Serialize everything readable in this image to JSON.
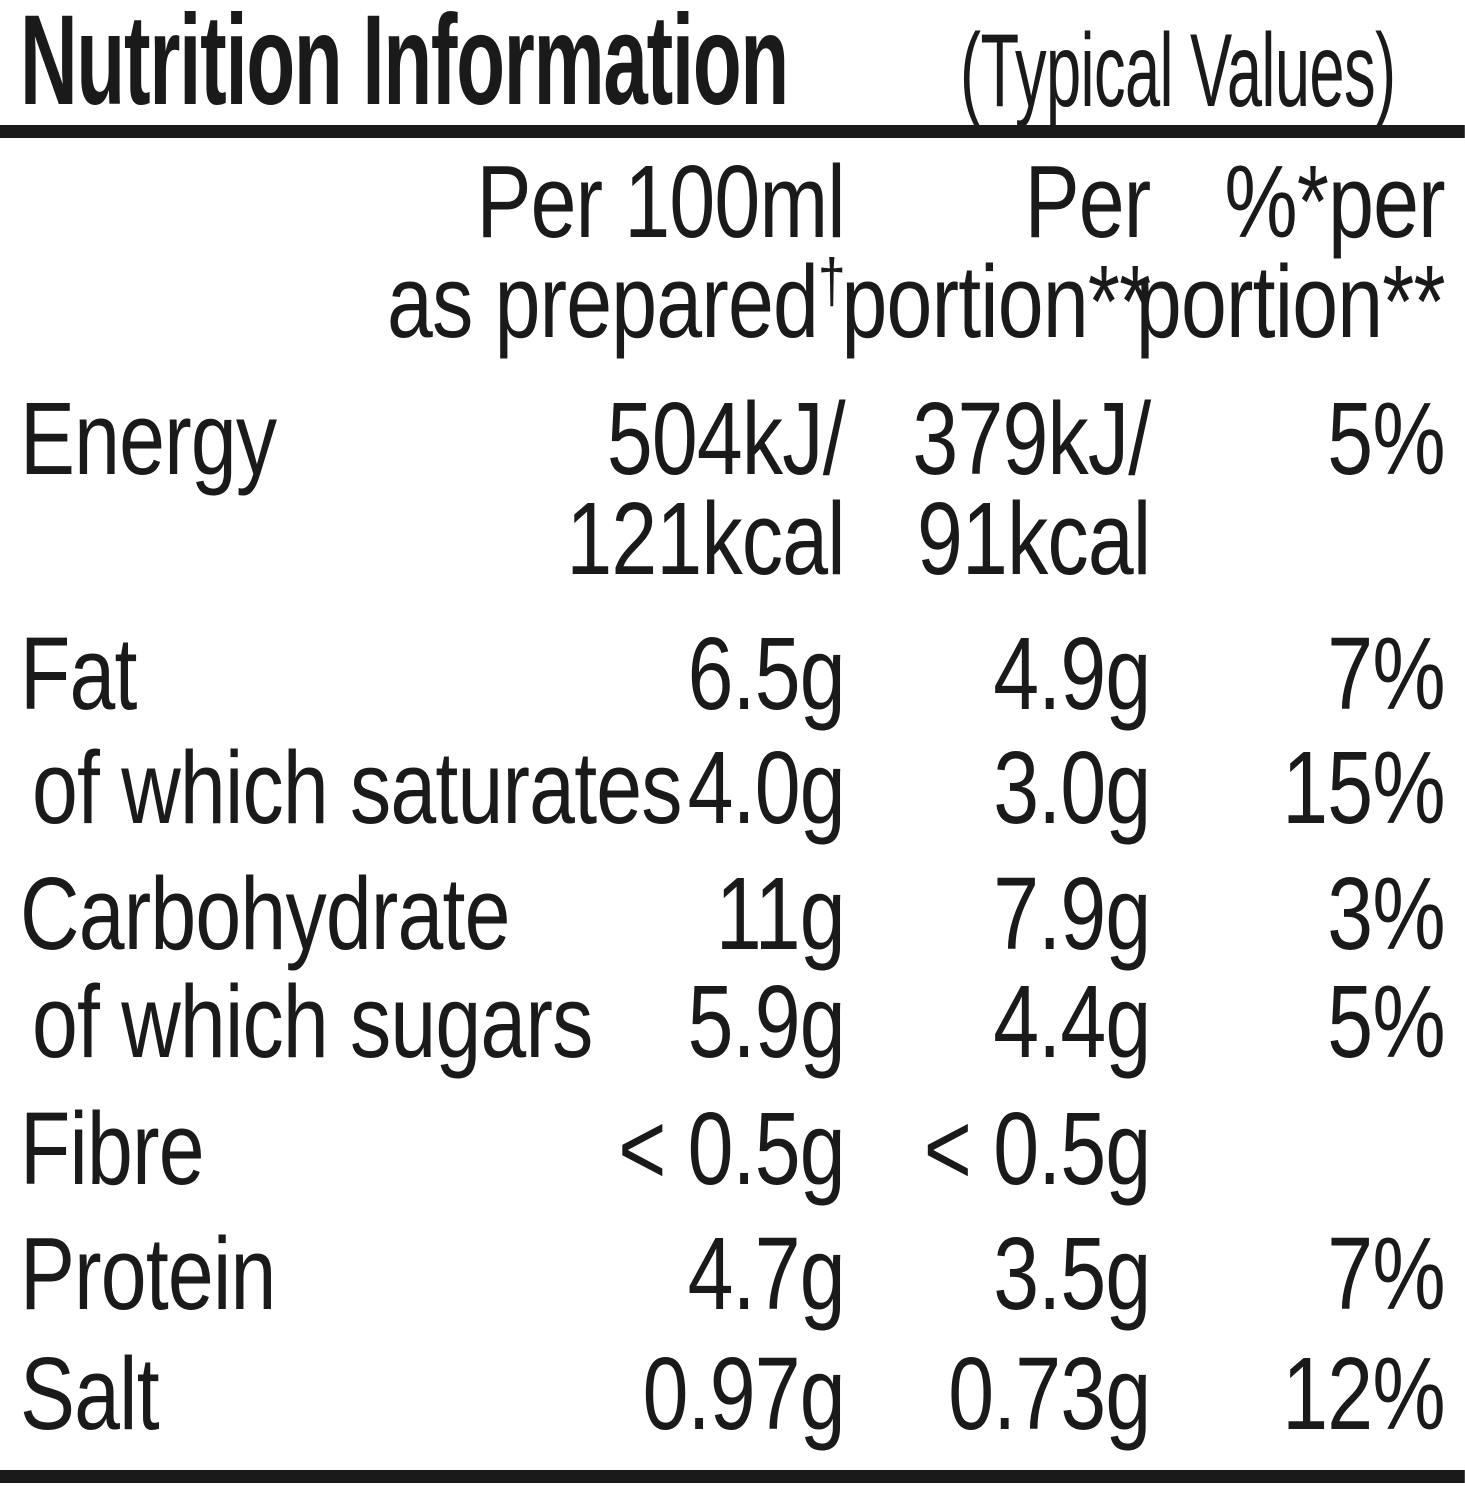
{
  "title": {
    "main": "Nutrition Information",
    "suffix": "(Typical Values)"
  },
  "colors": {
    "text": "#1a1a1a",
    "rule": "#1a1a1a",
    "background": "#ffffff"
  },
  "table": {
    "headers": {
      "col2": {
        "line1": "Per 100ml",
        "line2": "as prepared",
        "line2_sup": "†"
      },
      "col3": {
        "line1": "Per",
        "line2": "portion**"
      },
      "col4": {
        "line1": "%*per",
        "line2": "portion**"
      }
    },
    "rows": [
      {
        "label": "Energy",
        "per100ml": "504kJ/",
        "per_portion": "379kJ/",
        "pct_per_portion": "5%"
      },
      {
        "label": "",
        "per100ml": "121kcal",
        "per_portion": "91kcal",
        "pct_per_portion": ""
      },
      {
        "label": "Fat",
        "per100ml": "6.5g",
        "per_portion": "4.9g",
        "pct_per_portion": "7%"
      },
      {
        "label": "of which saturates",
        "per100ml": "4.0g",
        "per_portion": "3.0g",
        "pct_per_portion": "15%"
      },
      {
        "label": "Carbohydrate",
        "per100ml": "11g",
        "per_portion": "7.9g",
        "pct_per_portion": "3%"
      },
      {
        "label": "of which sugars",
        "per100ml": "5.9g",
        "per_portion": "4.4g",
        "pct_per_portion": "5%"
      },
      {
        "label": "Fibre",
        "per100ml": "< 0.5g",
        "per_portion": "< 0.5g",
        "pct_per_portion": ""
      },
      {
        "label": "Protein",
        "per100ml": "4.7g",
        "per_portion": "3.5g",
        "pct_per_portion": "7%"
      },
      {
        "label": "Salt",
        "per100ml": "0.97g",
        "per_portion": "0.73g",
        "pct_per_portion": "12%"
      }
    ]
  }
}
